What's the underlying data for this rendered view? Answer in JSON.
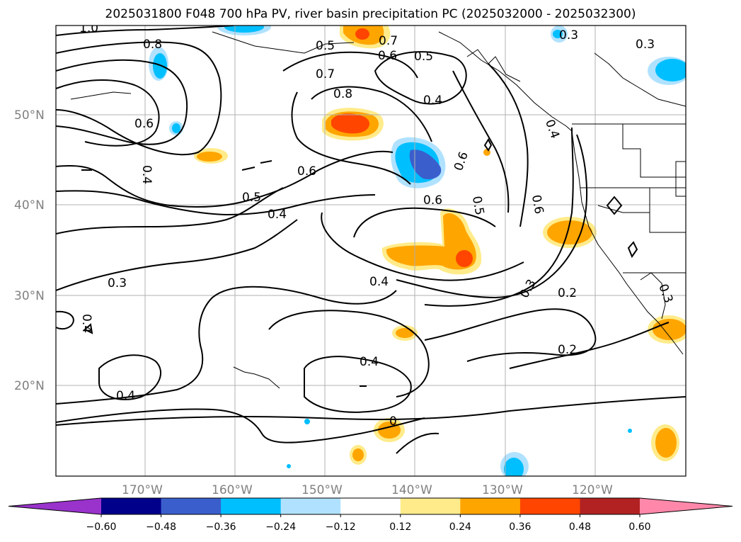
{
  "title": "2025031800 F048 700 hPa PV, river basin precipitation PC (2025032000 - 2025032300)",
  "lat_labels": [
    "50°N",
    "40°N",
    "30°N",
    "20°N"
  ],
  "lon_labels": [
    "170°W",
    "160°W",
    "150°W",
    "140°W",
    "130°W",
    "120°W"
  ],
  "colorbar": {
    "ticks": [
      "−0.60",
      "−0.48",
      "−0.36",
      "−0.24",
      "−0.12",
      "0.12",
      "0.24",
      "0.36",
      "0.48",
      "0.60"
    ],
    "colors": [
      "#9933cc",
      "#00008b",
      "#3a5fcd",
      "#00bfff",
      "#b0e2ff",
      "#ffffff",
      "#ffeb8a",
      "#ffa500",
      "#ff4500",
      "#b22222",
      "#ff88aa"
    ]
  },
  "contour_labels": [
    "1.0",
    "0.8",
    "0.5",
    "0.7",
    "0.6",
    "0.5",
    "0.7",
    "0.8",
    "0.4",
    "0.3",
    "0.3",
    "0.6",
    "0.4",
    "0.6",
    "0.5",
    "0.4",
    "0.6",
    "0.6",
    "0.5",
    "0.6",
    "0.4",
    "0.3",
    "0.2",
    "0.4",
    "0.3",
    "0.4",
    "0.2",
    "0.4",
    "0.4",
    "0",
    "0.3"
  ],
  "map_features": {
    "contour_color": "#000000",
    "gridline_color": "#b0b0b0",
    "land_outline": "coastlines and state borders"
  }
}
